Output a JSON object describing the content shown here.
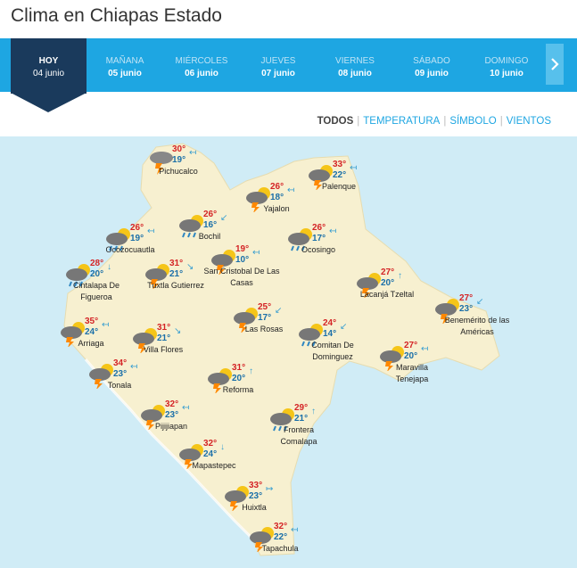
{
  "page": {
    "title": "Clima en Chiapas Estado"
  },
  "days": [
    {
      "name": "HOY",
      "date": "04 junio"
    },
    {
      "name": "MAÑANA",
      "date": "05 junio"
    },
    {
      "name": "MIÉRCOLES",
      "date": "06 junio"
    },
    {
      "name": "JUEVES",
      "date": "07 junio"
    },
    {
      "name": "VIERNES",
      "date": "08 junio"
    },
    {
      "name": "SÁBADO",
      "date": "09 junio"
    },
    {
      "name": "DOMINGO",
      "date": "10 junio"
    }
  ],
  "filters": {
    "all": "TODOS",
    "temperature": "TEMPERATURA",
    "symbol": "SÍMBOLO",
    "winds": "VIENTOS",
    "active": "TODOS"
  },
  "colors": {
    "header": "#1ea6e2",
    "today": "#1a3a5c",
    "land": "#f7f0d0",
    "sea": "#d0ecf6",
    "hi": "#d42426",
    "lo": "#1a6fa8"
  },
  "cities": [
    {
      "name": "Pichucalco",
      "hi": "30°",
      "lo": "19°",
      "icon": "cloud-storm-icon",
      "wind": "↤"
    },
    {
      "name": "Palenque",
      "hi": "33°",
      "lo": "22°",
      "icon": "partly-cloudy-storm-icon",
      "wind": "↤"
    },
    {
      "name": "Yajalon",
      "hi": "26°",
      "lo": "18°",
      "icon": "partly-cloudy-storm-icon",
      "wind": "↤"
    },
    {
      "name": "Bochil",
      "hi": "26°",
      "lo": "16°",
      "icon": "partly-cloudy-rain-icon",
      "wind": "↙"
    },
    {
      "name": "Ocozocuautla",
      "hi": "26°",
      "lo": "19°",
      "icon": "partly-cloudy-rain-icon",
      "wind": "↤"
    },
    {
      "name": "Ocosingo",
      "hi": "26°",
      "lo": "17°",
      "icon": "partly-cloudy-rain-icon",
      "wind": "↤"
    },
    {
      "name": "San Cristobal De Las Casas",
      "hi": "19°",
      "lo": "10°",
      "icon": "partly-cloudy-storm-icon",
      "wind": "↤"
    },
    {
      "name": "Cintalapa De Figueroa",
      "hi": "28°",
      "lo": "20°",
      "icon": "partly-cloudy-rain-icon",
      "wind": "↓"
    },
    {
      "name": "Tuxtla Gutierrez",
      "hi": "31°",
      "lo": "21°",
      "icon": "partly-cloudy-storm-icon",
      "wind": "↘"
    },
    {
      "name": "Lacanjá Tzeltal",
      "hi": "27°",
      "lo": "20°",
      "icon": "partly-cloudy-storm-icon",
      "wind": "↑"
    },
    {
      "name": "Benemérito de las Américas",
      "hi": "27°",
      "lo": "23°",
      "icon": "partly-cloudy-storm-icon",
      "wind": "↙"
    },
    {
      "name": "Arriaga",
      "hi": "35°",
      "lo": "24°",
      "icon": "partly-cloudy-storm-icon",
      "wind": "↤"
    },
    {
      "name": "Villa Flores",
      "hi": "31°",
      "lo": "21°",
      "icon": "partly-cloudy-storm-icon",
      "wind": "↘"
    },
    {
      "name": "Las Rosas",
      "hi": "25°",
      "lo": "17°",
      "icon": "partly-cloudy-storm-icon",
      "wind": "↙"
    },
    {
      "name": "Comitan De Dominguez",
      "hi": "24°",
      "lo": "14°",
      "icon": "partly-cloudy-rain-icon",
      "wind": "↙"
    },
    {
      "name": "Maravilla Tenejapa",
      "hi": "27°",
      "lo": "20°",
      "icon": "partly-cloudy-storm-icon",
      "wind": "↤"
    },
    {
      "name": "Tonala",
      "hi": "34°",
      "lo": "23°",
      "icon": "partly-cloudy-storm-icon",
      "wind": "↤"
    },
    {
      "name": "Reforma",
      "hi": "31°",
      "lo": "20°",
      "icon": "partly-cloudy-storm-icon",
      "wind": "↑"
    },
    {
      "name": "Pijijiapan",
      "hi": "32°",
      "lo": "23°",
      "icon": "partly-cloudy-storm-icon",
      "wind": "↤"
    },
    {
      "name": "Frontera Comalapa",
      "hi": "29°",
      "lo": "21°",
      "icon": "partly-cloudy-rain-icon",
      "wind": "↑"
    },
    {
      "name": "Mapastepec",
      "hi": "32°",
      "lo": "24°",
      "icon": "partly-cloudy-storm-icon",
      "wind": "↓"
    },
    {
      "name": "Huixtla",
      "hi": "33°",
      "lo": "23°",
      "icon": "partly-cloudy-storm-icon",
      "wind": "↦"
    },
    {
      "name": "Tapachula",
      "hi": "32°",
      "lo": "22°",
      "icon": "partly-cloudy-storm-icon",
      "wind": "↤"
    }
  ]
}
